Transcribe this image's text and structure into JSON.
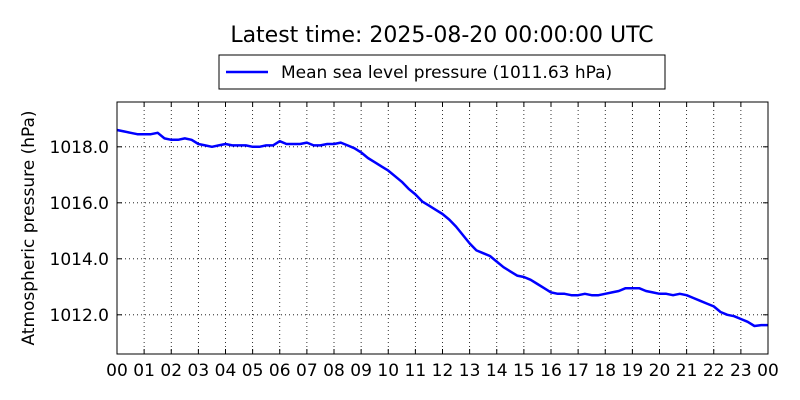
{
  "chart_data": {
    "type": "line",
    "title": "Latest time: 2025-08-20 00:00:00 UTC",
    "ylabel": "Atmospheric pressure (hPa)",
    "xlabel": "",
    "x_ticks": [
      "00",
      "01",
      "02",
      "03",
      "04",
      "05",
      "06",
      "07",
      "08",
      "09",
      "10",
      "11",
      "12",
      "13",
      "14",
      "15",
      "16",
      "17",
      "18",
      "19",
      "20",
      "21",
      "22",
      "23",
      "00"
    ],
    "x_range": [
      0,
      24
    ],
    "ylim": [
      1010.6,
      1019.6
    ],
    "y_ticks": [
      1012.0,
      1014.0,
      1016.0,
      1018.0
    ],
    "y_tick_labels": [
      "1012.0",
      "1014.0",
      "1016.0",
      "1018.0"
    ],
    "grid": true,
    "legend_position": "top-center",
    "series": [
      {
        "name": "Mean sea level pressure (1011.63 hPa)",
        "color": "#0000ff",
        "x": [
          0,
          0.25,
          0.5,
          0.75,
          1,
          1.25,
          1.5,
          1.75,
          2,
          2.25,
          2.5,
          2.75,
          3,
          3.25,
          3.5,
          3.75,
          4,
          4.25,
          4.5,
          4.75,
          5,
          5.25,
          5.5,
          5.75,
          6,
          6.25,
          6.5,
          6.75,
          7,
          7.25,
          7.5,
          7.75,
          8,
          8.25,
          8.5,
          8.75,
          9,
          9.25,
          9.5,
          9.75,
          10,
          10.25,
          10.5,
          10.75,
          11,
          11.25,
          11.5,
          11.75,
          12,
          12.25,
          12.5,
          12.75,
          13,
          13.25,
          13.5,
          13.75,
          14,
          14.25,
          14.5,
          14.75,
          15,
          15.25,
          15.5,
          15.75,
          16,
          16.25,
          16.5,
          16.75,
          17,
          17.25,
          17.5,
          17.75,
          18,
          18.25,
          18.5,
          18.75,
          19,
          19.25,
          19.5,
          19.75,
          20,
          20.25,
          20.5,
          20.75,
          21,
          21.25,
          21.5,
          21.75,
          22,
          22.25,
          22.5,
          22.75,
          23,
          23.25,
          23.5,
          23.75,
          24
        ],
        "y": [
          1018.6,
          1018.55,
          1018.5,
          1018.45,
          1018.45,
          1018.45,
          1018.5,
          1018.3,
          1018.25,
          1018.25,
          1018.3,
          1018.25,
          1018.1,
          1018.05,
          1018.0,
          1018.05,
          1018.1,
          1018.05,
          1018.05,
          1018.05,
          1018.0,
          1018.0,
          1018.05,
          1018.05,
          1018.2,
          1018.1,
          1018.1,
          1018.1,
          1018.15,
          1018.05,
          1018.05,
          1018.1,
          1018.1,
          1018.15,
          1018.05,
          1017.95,
          1017.8,
          1017.6,
          1017.45,
          1017.3,
          1017.15,
          1016.95,
          1016.75,
          1016.5,
          1016.3,
          1016.05,
          1015.9,
          1015.75,
          1015.6,
          1015.4,
          1015.15,
          1014.85,
          1014.55,
          1014.3,
          1014.2,
          1014.1,
          1013.9,
          1013.7,
          1013.55,
          1013.4,
          1013.35,
          1013.25,
          1013.1,
          1012.95,
          1012.8,
          1012.75,
          1012.75,
          1012.7,
          1012.7,
          1012.75,
          1012.7,
          1012.7,
          1012.75,
          1012.8,
          1012.85,
          1012.95,
          1012.95,
          1012.95,
          1012.85,
          1012.8,
          1012.75,
          1012.75,
          1012.7,
          1012.75,
          1012.7,
          1012.6,
          1012.5,
          1012.4,
          1012.3,
          1012.1,
          1012.0,
          1011.95,
          1011.85,
          1011.75,
          1011.6,
          1011.63,
          1011.63
        ]
      }
    ]
  }
}
